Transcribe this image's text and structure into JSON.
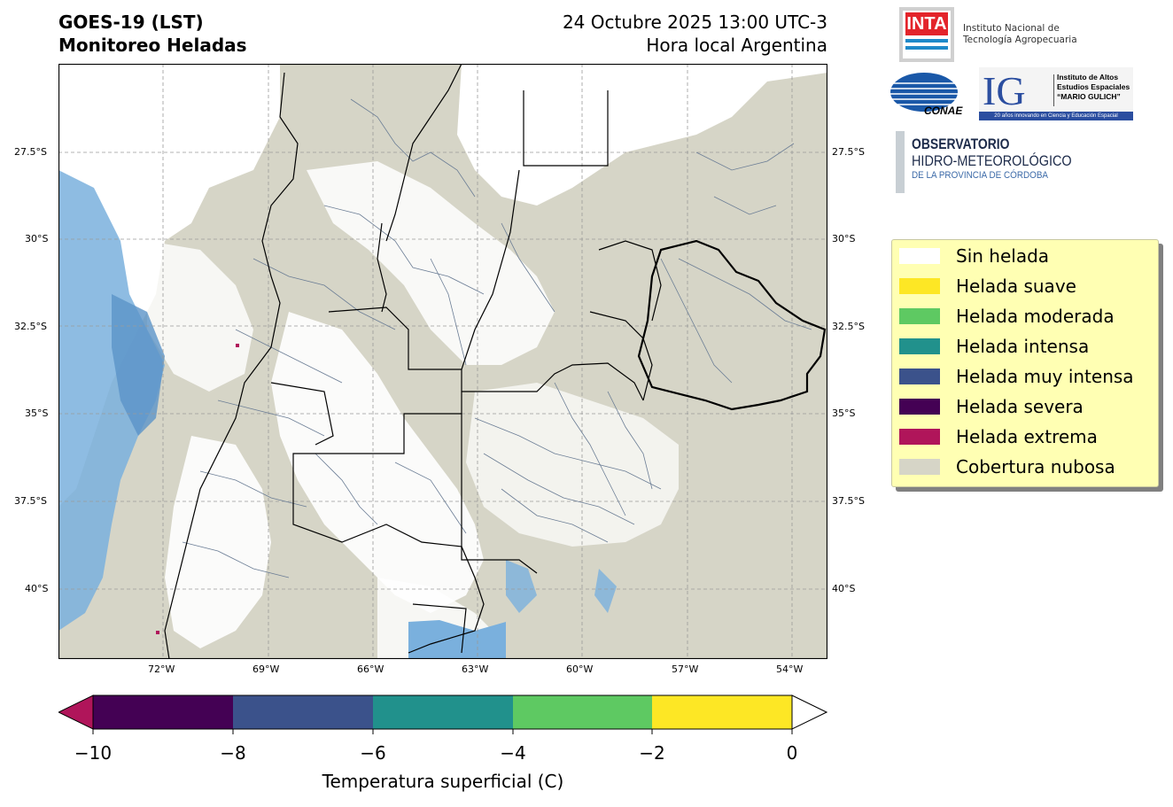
{
  "header": {
    "title_line1": "GOES-19 (LST)",
    "title_line2": "Monitoreo Heladas",
    "datetime": "24 Octubre 2025 13:00 UTC-3",
    "timezone": "Hora local Argentina"
  },
  "map": {
    "lat_labels": [
      "27.5°S",
      "30°S",
      "32.5°S",
      "35°S",
      "37.5°S",
      "40°S"
    ],
    "lon_labels": [
      "72°W",
      "69°W",
      "66°W",
      "63°W",
      "60°W",
      "57°W",
      "54°W"
    ],
    "colors": {
      "no_frost": "#ffffff",
      "cloud": "#d6d5c7",
      "water_light": "#7ab0dd",
      "water_dark": "#5b93c8",
      "extreme": "#b0155a",
      "border": "#000000",
      "district": "#6b7d95",
      "grid": "#9a9a9a"
    }
  },
  "logos": {
    "inta_mark": "INTA",
    "inta_line1": "Instituto Nacional de",
    "inta_line2": "Tecnología Agropecuaria",
    "conae": "CONAE",
    "ig_mark": "IG",
    "ig_line1": "Instituto de Altos",
    "ig_line2": "Estudios Espaciales",
    "ig_line3": "“MARIO GULICH”",
    "ig_tagline": "20 años innovando en Ciencia y Educación Espacial",
    "obs_line1": "OBSERVATORIO",
    "obs_line2": "HIDRO-METEOROLÓGICO",
    "obs_line3": "DE LA PROVINCIA DE CÓRDOBA"
  },
  "legend": {
    "items": [
      {
        "label": "Sin helada",
        "color": "#ffffff"
      },
      {
        "label": "Helada suave",
        "color": "#fde725"
      },
      {
        "label": "Helada moderada",
        "color": "#5ec962"
      },
      {
        "label": "Helada intensa",
        "color": "#21918c"
      },
      {
        "label": "Helada muy intensa",
        "color": "#3b528b"
      },
      {
        "label": "Helada severa",
        "color": "#440154"
      },
      {
        "label": "Helada extrema",
        "color": "#b0155a"
      },
      {
        "label": "Cobertura nubosa",
        "color": "#d6d5c7"
      }
    ]
  },
  "colorbar": {
    "ticks": [
      "−10",
      "−8",
      "−6",
      "−4",
      "−2",
      "0"
    ],
    "title": "Temperatura superficial (C)",
    "segments": [
      "#440154",
      "#3b528b",
      "#21918c",
      "#5ec962",
      "#fde725"
    ],
    "under_color": "#b0155a",
    "over_color": "#ffffff"
  }
}
